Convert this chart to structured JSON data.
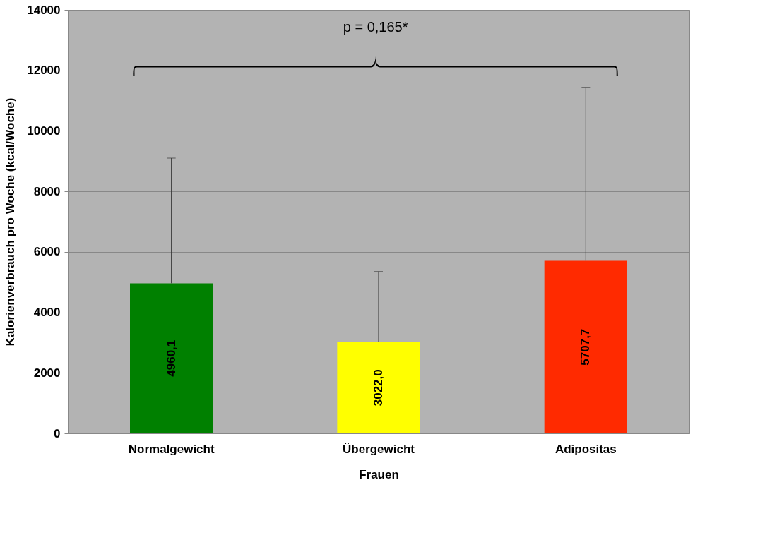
{
  "chart_data": {
    "type": "bar",
    "xlabel": "Frauen",
    "ylabel": "Kalorienverbrauch pro Woche (kcal/Woche)",
    "categories": [
      "Normalgewicht",
      "Übergewicht",
      "Adipositas"
    ],
    "values": [
      4960.1,
      3022.0,
      5707.7
    ],
    "colors": [
      "#008000",
      "#ffff00",
      "#ff2a00"
    ],
    "errors": [
      [
        4960.1,
        9100
      ],
      [
        3022.0,
        5350
      ],
      [
        5707.7,
        11440
      ]
    ],
    "value_labels": [
      "4960,1",
      "3022,0",
      "5707,7"
    ],
    "ylim": [
      0,
      14000
    ],
    "yticks": [
      0,
      2000,
      4000,
      6000,
      8000,
      10000,
      12000,
      14000
    ],
    "grid": "y",
    "annotations": [
      "p = 0,165*"
    ]
  }
}
